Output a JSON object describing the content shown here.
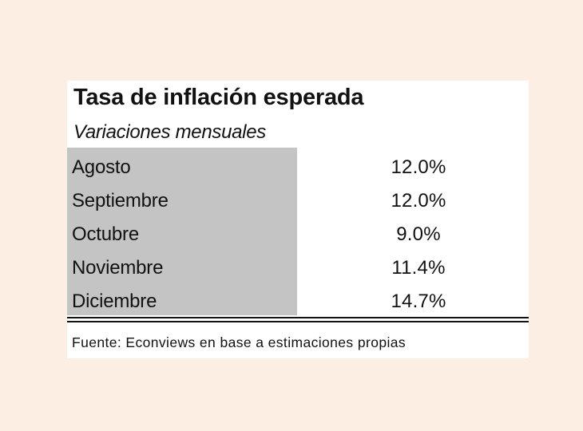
{
  "table": {
    "title": "Tasa de inflación esperada",
    "subtitle": "Variaciones mensuales",
    "rows": [
      {
        "month": "Agosto",
        "value": "12.0%"
      },
      {
        "month": "Septiembre",
        "value": "12.0%"
      },
      {
        "month": "Octubre",
        "value": "9.0%"
      },
      {
        "month": "Noviembre",
        "value": "11.4%"
      },
      {
        "month": "Diciembre",
        "value": "14.7%"
      }
    ],
    "source": "Fuente: Econviews en base a estimaciones propias"
  },
  "colors": {
    "background": "#fdeee3",
    "card": "#ffffff",
    "label_column": "#c4c4c4",
    "text": "#111111"
  }
}
